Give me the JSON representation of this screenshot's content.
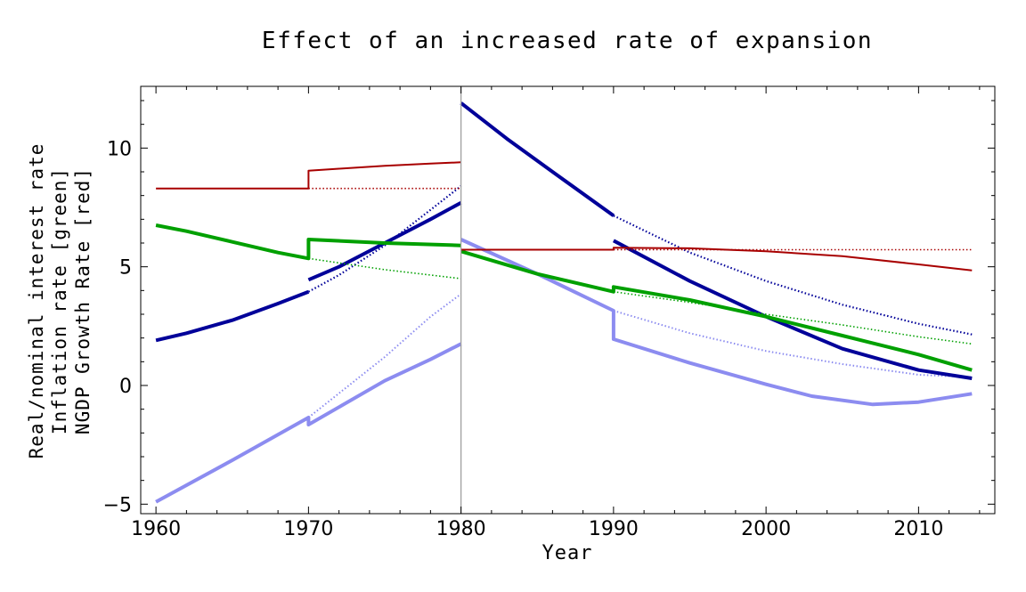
{
  "chart_data": {
    "type": "line",
    "title": "Effect of an increased rate of expansion",
    "xlabel": "Year",
    "ylabel_lines": [
      "Real/nominal interest rate",
      "Inflation rate [green]",
      "NGDP Growth Rate [red]"
    ],
    "xlim": [
      1959,
      2015
    ],
    "ylim": [
      -5.4,
      12.6
    ],
    "x_ticks": [
      1960,
      1970,
      1980,
      1990,
      2000,
      2010
    ],
    "y_ticks": [
      -5,
      0,
      5,
      10
    ],
    "grid": false,
    "vertical_marker_x": 1980,
    "colors": {
      "ngdp": "#a80000",
      "inflation": "#00a000",
      "nominal": "#000099",
      "real": "#8c8cf0",
      "marker": "#a0a0a0"
    },
    "series": [
      {
        "key": "ngdp",
        "style": "solid",
        "width": 2,
        "points": [
          [
            1960,
            8.3
          ],
          [
            1970,
            8.3
          ],
          [
            1970,
            9.05
          ],
          [
            1972,
            9.13
          ],
          [
            1975,
            9.25
          ],
          [
            1978,
            9.35
          ],
          [
            1980,
            9.4
          ]
        ]
      },
      {
        "key": "ngdp",
        "style": "dotted",
        "width": 1.6,
        "points": [
          [
            1970,
            8.3
          ],
          [
            1980,
            8.3
          ]
        ]
      },
      {
        "key": "ngdp",
        "style": "solid",
        "width": 2,
        "points": [
          [
            1980,
            5.72
          ],
          [
            1990,
            5.72
          ],
          [
            1990,
            5.8
          ],
          [
            1995,
            5.78
          ],
          [
            2000,
            5.65
          ],
          [
            2005,
            5.45
          ],
          [
            2010,
            5.1
          ],
          [
            2013.5,
            4.85
          ]
        ]
      },
      {
        "key": "ngdp",
        "style": "dotted",
        "width": 1.6,
        "points": [
          [
            1990,
            5.72
          ],
          [
            2013.5,
            5.72
          ]
        ]
      },
      {
        "key": "inflation",
        "style": "solid",
        "width": 4,
        "points": [
          [
            1960,
            6.75
          ],
          [
            1962,
            6.5
          ],
          [
            1965,
            6.05
          ],
          [
            1968,
            5.6
          ],
          [
            1970,
            5.35
          ],
          [
            1970,
            6.15
          ],
          [
            1975,
            6.0
          ],
          [
            1980,
            5.9
          ]
        ]
      },
      {
        "key": "inflation",
        "style": "dotted",
        "width": 1.6,
        "points": [
          [
            1970,
            5.35
          ],
          [
            1975,
            4.88
          ],
          [
            1980,
            4.5
          ]
        ]
      },
      {
        "key": "inflation",
        "style": "solid",
        "width": 4,
        "points": [
          [
            1980,
            5.65
          ],
          [
            1985,
            4.7
          ],
          [
            1990,
            3.95
          ],
          [
            1990,
            4.15
          ],
          [
            1995,
            3.6
          ],
          [
            2000,
            2.9
          ],
          [
            2005,
            2.1
          ],
          [
            2010,
            1.3
          ],
          [
            2013.5,
            0.65
          ]
        ]
      },
      {
        "key": "inflation",
        "style": "dotted",
        "width": 1.6,
        "points": [
          [
            1990,
            3.95
          ],
          [
            1995,
            3.5
          ],
          [
            2000,
            3.0
          ],
          [
            2005,
            2.55
          ],
          [
            2010,
            2.05
          ],
          [
            2013.5,
            1.75
          ]
        ]
      },
      {
        "key": "nominal",
        "style": "solid",
        "width": 4,
        "points": [
          [
            1960,
            1.9
          ],
          [
            1962,
            2.2
          ],
          [
            1965,
            2.75
          ],
          [
            1968,
            3.45
          ],
          [
            1970,
            3.95
          ]
        ]
      },
      {
        "key": "nominal",
        "style": "solid",
        "width": 4,
        "points": [
          [
            1970,
            4.45
          ],
          [
            1972,
            5.0
          ],
          [
            1975,
            6.0
          ],
          [
            1978,
            7.0
          ],
          [
            1980,
            7.7
          ]
        ]
      },
      {
        "key": "nominal",
        "style": "dotted",
        "width": 2.2,
        "points": [
          [
            1970,
            3.95
          ],
          [
            1972,
            4.65
          ],
          [
            1975,
            5.9
          ],
          [
            1978,
            7.4
          ],
          [
            1980,
            8.4
          ]
        ]
      },
      {
        "key": "nominal",
        "style": "solid",
        "width": 4,
        "points": [
          [
            1980,
            11.9
          ],
          [
            1983,
            10.4
          ],
          [
            1986,
            9.0
          ],
          [
            1990,
            7.15
          ]
        ]
      },
      {
        "key": "nominal",
        "style": "dotted",
        "width": 2.2,
        "points": [
          [
            1990,
            7.15
          ],
          [
            1995,
            5.6
          ],
          [
            2000,
            4.4
          ],
          [
            2005,
            3.4
          ],
          [
            2010,
            2.6
          ],
          [
            2013.5,
            2.15
          ]
        ]
      },
      {
        "key": "nominal",
        "style": "solid",
        "width": 4,
        "points": [
          [
            1990,
            6.1
          ],
          [
            1995,
            4.4
          ],
          [
            2000,
            2.9
          ],
          [
            2005,
            1.55
          ],
          [
            2010,
            0.65
          ],
          [
            2013.5,
            0.3
          ]
        ]
      },
      {
        "key": "real",
        "style": "solid",
        "width": 4,
        "points": [
          [
            1960,
            -4.9
          ],
          [
            1965,
            -3.15
          ],
          [
            1970,
            -1.35
          ],
          [
            1970,
            -1.65
          ],
          [
            1975,
            0.2
          ],
          [
            1978,
            1.1
          ],
          [
            1980,
            1.75
          ]
        ]
      },
      {
        "key": "real",
        "style": "dotted",
        "width": 2,
        "points": [
          [
            1970,
            -1.35
          ],
          [
            1975,
            1.2
          ],
          [
            1978,
            2.9
          ],
          [
            1980,
            3.85
          ]
        ]
      },
      {
        "key": "real",
        "style": "solid",
        "width": 4,
        "points": [
          [
            1980,
            6.15
          ],
          [
            1985,
            4.7
          ],
          [
            1990,
            3.15
          ],
          [
            1990,
            1.95
          ],
          [
            1995,
            0.95
          ],
          [
            2000,
            0.05
          ],
          [
            2003,
            -0.45
          ],
          [
            2007,
            -0.8
          ],
          [
            2010,
            -0.7
          ],
          [
            2013.5,
            -0.35
          ]
        ]
      },
      {
        "key": "real",
        "style": "dotted",
        "width": 2,
        "points": [
          [
            1990,
            3.15
          ],
          [
            1995,
            2.2
          ],
          [
            2000,
            1.45
          ],
          [
            2005,
            0.9
          ],
          [
            2010,
            0.45
          ],
          [
            2013.5,
            0.35
          ]
        ]
      }
    ]
  }
}
